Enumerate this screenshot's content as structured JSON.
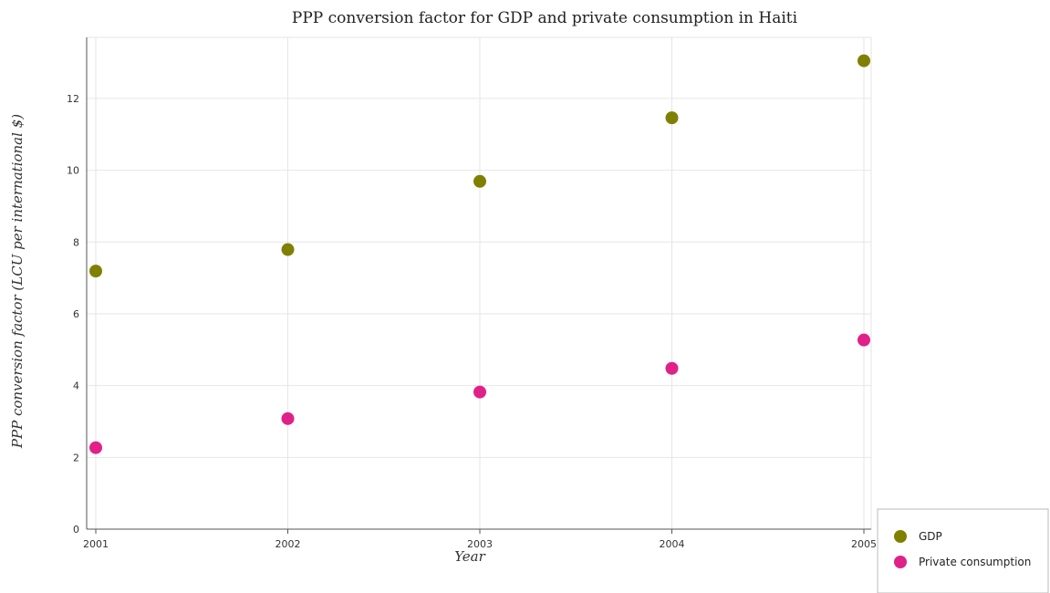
{
  "chart_data": {
    "type": "scatter",
    "title": "PPP conversion factor for GDP and private consumption in Haiti",
    "xlabel": "Year",
    "ylabel": "PPP conversion factor (LCU per international $)",
    "categories": [
      "2001",
      "2002",
      "2003",
      "2004",
      "2005"
    ],
    "yticks": [
      "0",
      "2",
      "4",
      "6",
      "8",
      "10",
      "12"
    ],
    "ylim": [
      0,
      13.7
    ],
    "grid": true,
    "legend_position": "bottom-right",
    "series": [
      {
        "name": "GDP",
        "color": "#808000",
        "values": [
          7.19,
          7.79,
          9.69,
          11.46,
          13.05
        ]
      },
      {
        "name": " Private consumption",
        "color": "#e0218a",
        "values": [
          2.27,
          3.08,
          3.82,
          4.48,
          5.27
        ]
      }
    ]
  }
}
